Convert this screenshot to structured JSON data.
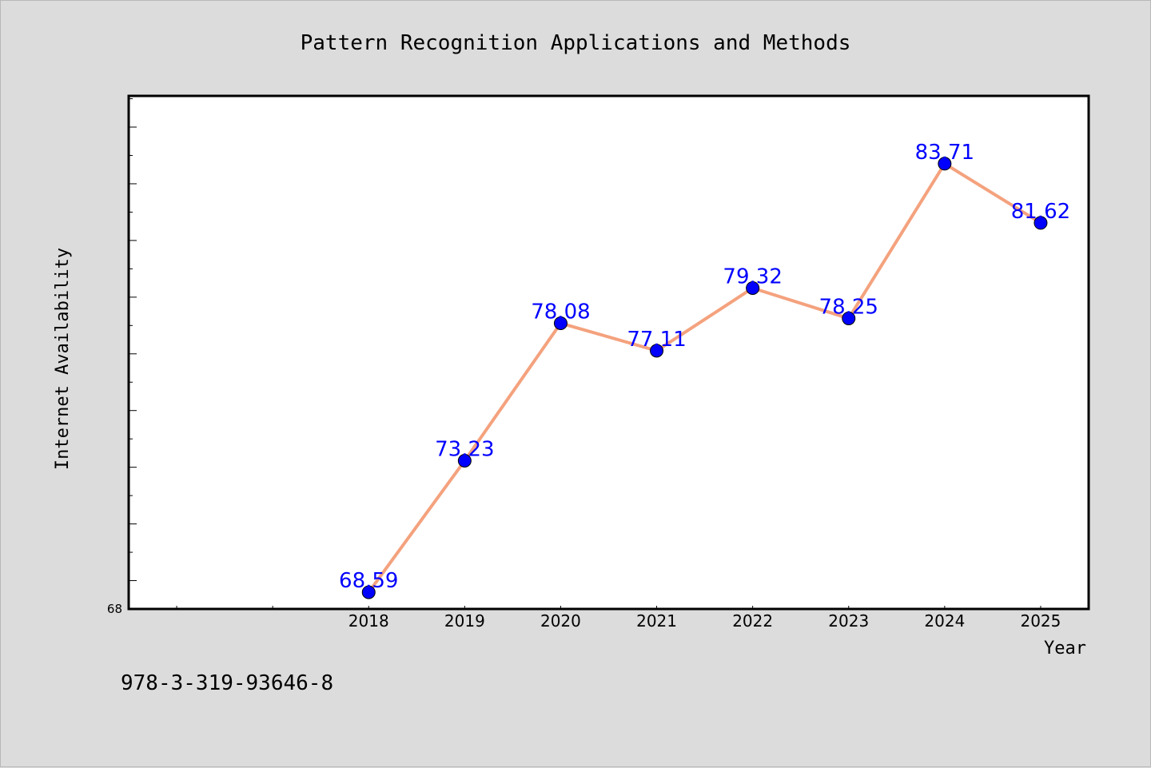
{
  "chart_data": {
    "type": "line",
    "title": "Pattern Recognition Applications and Methods",
    "xlabel": "Year",
    "ylabel": "Internet Availability",
    "x": [
      "2018",
      "2019",
      "2020",
      "2021",
      "2022",
      "2023",
      "2024",
      "2025"
    ],
    "series": [
      {
        "values": [
          68.59,
          73.23,
          78.08,
          77.11,
          79.32,
          78.25,
          83.71,
          81.62
        ],
        "labels": [
          "68.59",
          "73.23",
          "78.08",
          "77.11",
          "79.32",
          "78.25",
          "83.71",
          "81.62"
        ],
        "line_color": "#f4a27e",
        "marker_color": "#0000ff"
      }
    ],
    "xlim": [
      2015.5,
      2025.5
    ],
    "ylim": [
      68,
      86.1
    ],
    "y_min_label": "68",
    "grid": false,
    "legend": "none"
  },
  "footnote": "978-3-319-93646-8",
  "colors": {
    "background": "#dcdcdc",
    "plot_background": "#ffffff",
    "frame": "#000000"
  }
}
